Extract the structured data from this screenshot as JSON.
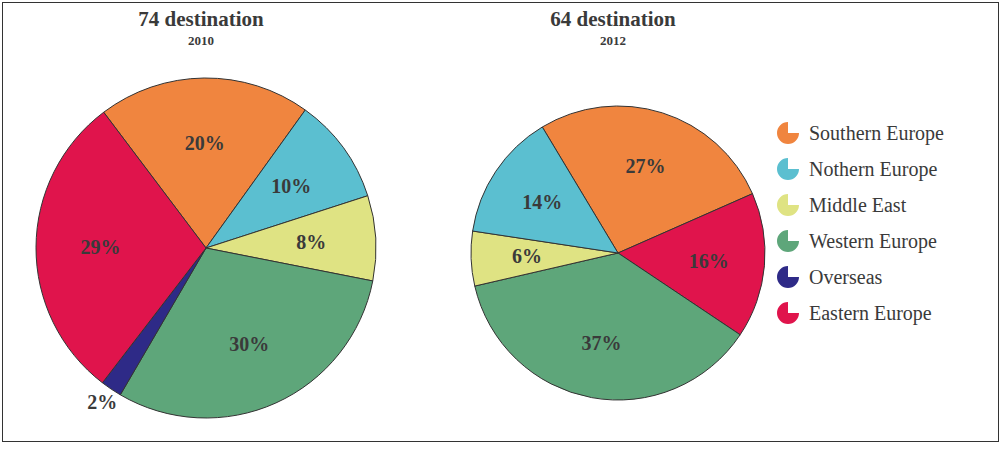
{
  "chart_data": [
    {
      "type": "pie",
      "title": "74 destination",
      "subtitle": "2010",
      "categories": [
        "Southern Europe",
        "Nothern Europe",
        "Middle East",
        "Western Europe",
        "Overseas",
        "Eastern Europe"
      ],
      "values": [
        20,
        10,
        8,
        30,
        2,
        29
      ],
      "value_labels": [
        "20%",
        "10%",
        "8%",
        "30%",
        "2%",
        "29%"
      ],
      "colors": [
        "#f0853f",
        "#5bbfd0",
        "#dfe383",
        "#5ea67a",
        "#2e2a87",
        "#e0144c"
      ],
      "data_labels": true
    },
    {
      "type": "pie",
      "title": "64 destination",
      "subtitle": "2012",
      "categories": [
        "Southern Europe",
        "Eastern Europe",
        "Western Europe",
        "Middle East",
        "Nothern Europe"
      ],
      "values": [
        27,
        16,
        37,
        6,
        14
      ],
      "value_labels": [
        "27%",
        "16%",
        "37%",
        "6%",
        "14%"
      ],
      "colors": [
        "#f0853f",
        "#e0144c",
        "#5ea67a",
        "#dfe383",
        "#5bbfd0"
      ],
      "data_labels": true,
      "legend": "right"
    }
  ]
}
